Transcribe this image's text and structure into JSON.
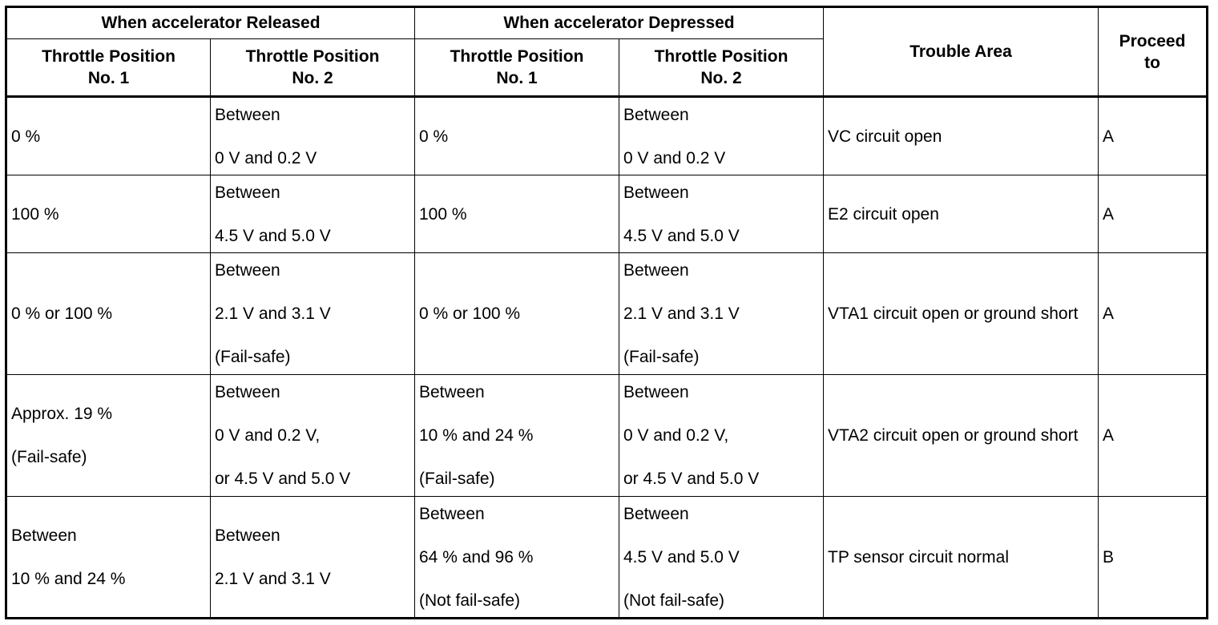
{
  "table": {
    "group_headers": {
      "released": "When accelerator Released",
      "depressed": "When accelerator Depressed",
      "trouble_area": "Trouble Area",
      "proceed_to": [
        "Proceed",
        "to"
      ]
    },
    "sub_headers": {
      "released_tp1": [
        "Throttle Position",
        "No. 1"
      ],
      "released_tp2": [
        "Throttle Position",
        "No. 2"
      ],
      "depressed_tp1": [
        "Throttle Position",
        "No. 1"
      ],
      "depressed_tp2": [
        "Throttle Position",
        "No. 2"
      ]
    },
    "rows": [
      {
        "rel_tp1": [
          "0 %"
        ],
        "rel_tp2": [
          "Between",
          "0 V and 0.2 V"
        ],
        "dep_tp1": [
          "0 %"
        ],
        "dep_tp2": [
          "Between",
          "0 V and 0.2 V"
        ],
        "trouble": "VC circuit open",
        "proceed": "A"
      },
      {
        "rel_tp1": [
          "100 %"
        ],
        "rel_tp2": [
          "Between",
          "4.5 V and 5.0 V"
        ],
        "dep_tp1": [
          "100 %"
        ],
        "dep_tp2": [
          "Between",
          "4.5 V and 5.0 V"
        ],
        "trouble": "E2 circuit open",
        "proceed": "A"
      },
      {
        "rel_tp1": [
          "0 % or 100 %"
        ],
        "rel_tp2": [
          "Between",
          "2.1 V and 3.1 V",
          "(Fail-safe)"
        ],
        "dep_tp1": [
          "0 % or 100 %"
        ],
        "dep_tp2": [
          "Between",
          "2.1 V and 3.1 V",
          "(Fail-safe)"
        ],
        "trouble": "VTA1 circuit open or ground short",
        "proceed": "A"
      },
      {
        "rel_tp1": [
          "Approx. 19 %",
          "(Fail-safe)"
        ],
        "rel_tp2": [
          "Between",
          "0 V and 0.2 V,",
          "or 4.5 V and 5.0 V"
        ],
        "dep_tp1": [
          "Between",
          "10 % and 24 %",
          "(Fail-safe)"
        ],
        "dep_tp2": [
          "Between",
          "0 V and 0.2 V,",
          "or 4.5 V and 5.0 V"
        ],
        "trouble": "VTA2 circuit open or ground short",
        "proceed": "A"
      },
      {
        "rel_tp1": [
          "Between",
          "10 % and 24 %"
        ],
        "rel_tp2": [
          "Between",
          "2.1 V and 3.1 V"
        ],
        "dep_tp1": [
          "Between",
          "64 % and 96 %",
          "(Not fail-safe)"
        ],
        "dep_tp2": [
          "Between",
          "4.5 V and 5.0 V",
          "(Not fail-safe)"
        ],
        "trouble": "TP sensor circuit normal",
        "proceed": "B"
      }
    ]
  }
}
